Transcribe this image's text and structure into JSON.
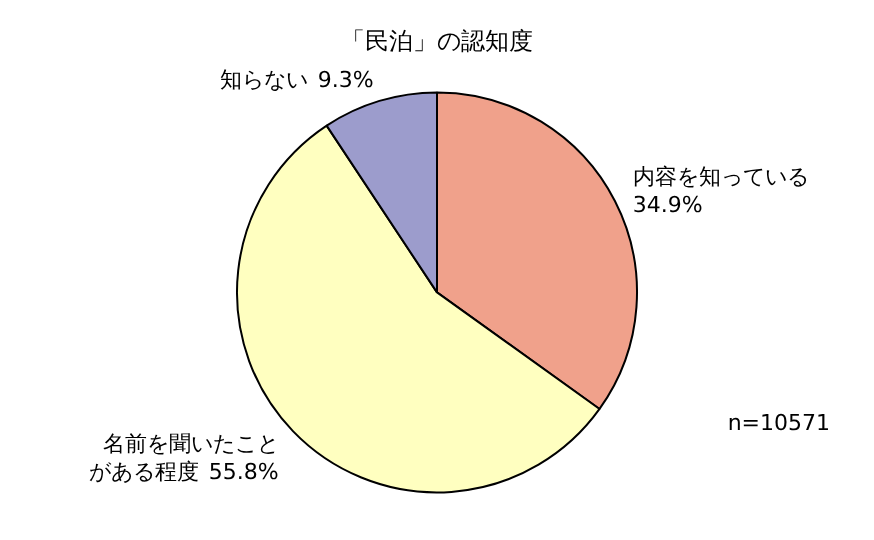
{
  "chart_data": {
    "type": "pie",
    "title": "「民泊」の認知度",
    "categories": [
      "内容を知っている",
      "名前を聞いたことがある程度",
      "知らない"
    ],
    "values": [
      34.9,
      55.8,
      9.3
    ],
    "colors": [
      "#f0a18b",
      "#ffffc0",
      "#9c9ccc"
    ],
    "value_labels": [
      "34.9%",
      "55.8%",
      "9.3%"
    ],
    "legend": false,
    "annotations": [
      "n=10571"
    ]
  }
}
